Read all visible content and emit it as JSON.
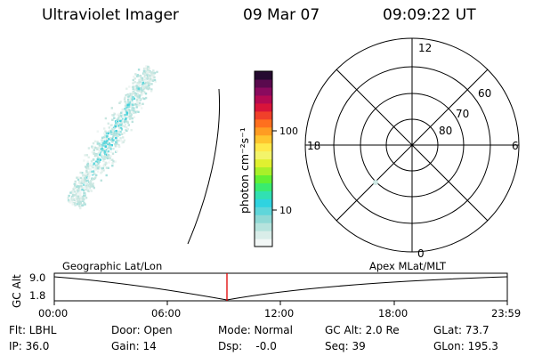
{
  "header": {
    "instrument": "Ultraviolet Imager",
    "date": "09 Mar 07",
    "time": "09:09:22 UT"
  },
  "colorbar": {
    "unit_label": "photon cm⁻²s⁻¹",
    "ticks": [
      "100",
      "10"
    ],
    "colors": [
      "#f2f7f6",
      "#d9ede9",
      "#b6e3dd",
      "#8fd9d5",
      "#5fd6da",
      "#2fd3e0",
      "#31e0b2",
      "#3aeb6f",
      "#62f033",
      "#a8f029",
      "#e0f030",
      "#f3f46a",
      "#ffe94a",
      "#ffc52e",
      "#ff9c22",
      "#ff6f1e",
      "#f0402a",
      "#d8143a",
      "#b40a52",
      "#8a0a5e",
      "#5a0a4e",
      "#250a30"
    ]
  },
  "polar_plot": {
    "mlt_labels": {
      "top": "12",
      "left": "18",
      "right": "6",
      "bottom": "0"
    },
    "mlat_labels": [
      "60",
      "70",
      "80"
    ]
  },
  "timeline": {
    "y_label": "GC Alt",
    "y_ticks": [
      "9.0",
      "1.8"
    ],
    "left_title": "Geographic Lat/Lon",
    "right_title": "Apex MLat/MLT",
    "x_ticks": [
      "00:00",
      "06:00",
      "12:00",
      "18:00",
      "23:59"
    ],
    "marker_color": "#e00000"
  },
  "info": {
    "flt": "Flt: LBHL",
    "door": "Door: Open",
    "mode": "Mode: Normal",
    "gc_alt": "GC Alt: 2.0 Re",
    "glat": "GLat: 73.7",
    "ip": "IP: 36.0",
    "gain": "Gain: 14",
    "dsp": "Dsp:    -0.0",
    "seq": "Seq: 39",
    "glon": "GLon: 195.3"
  }
}
